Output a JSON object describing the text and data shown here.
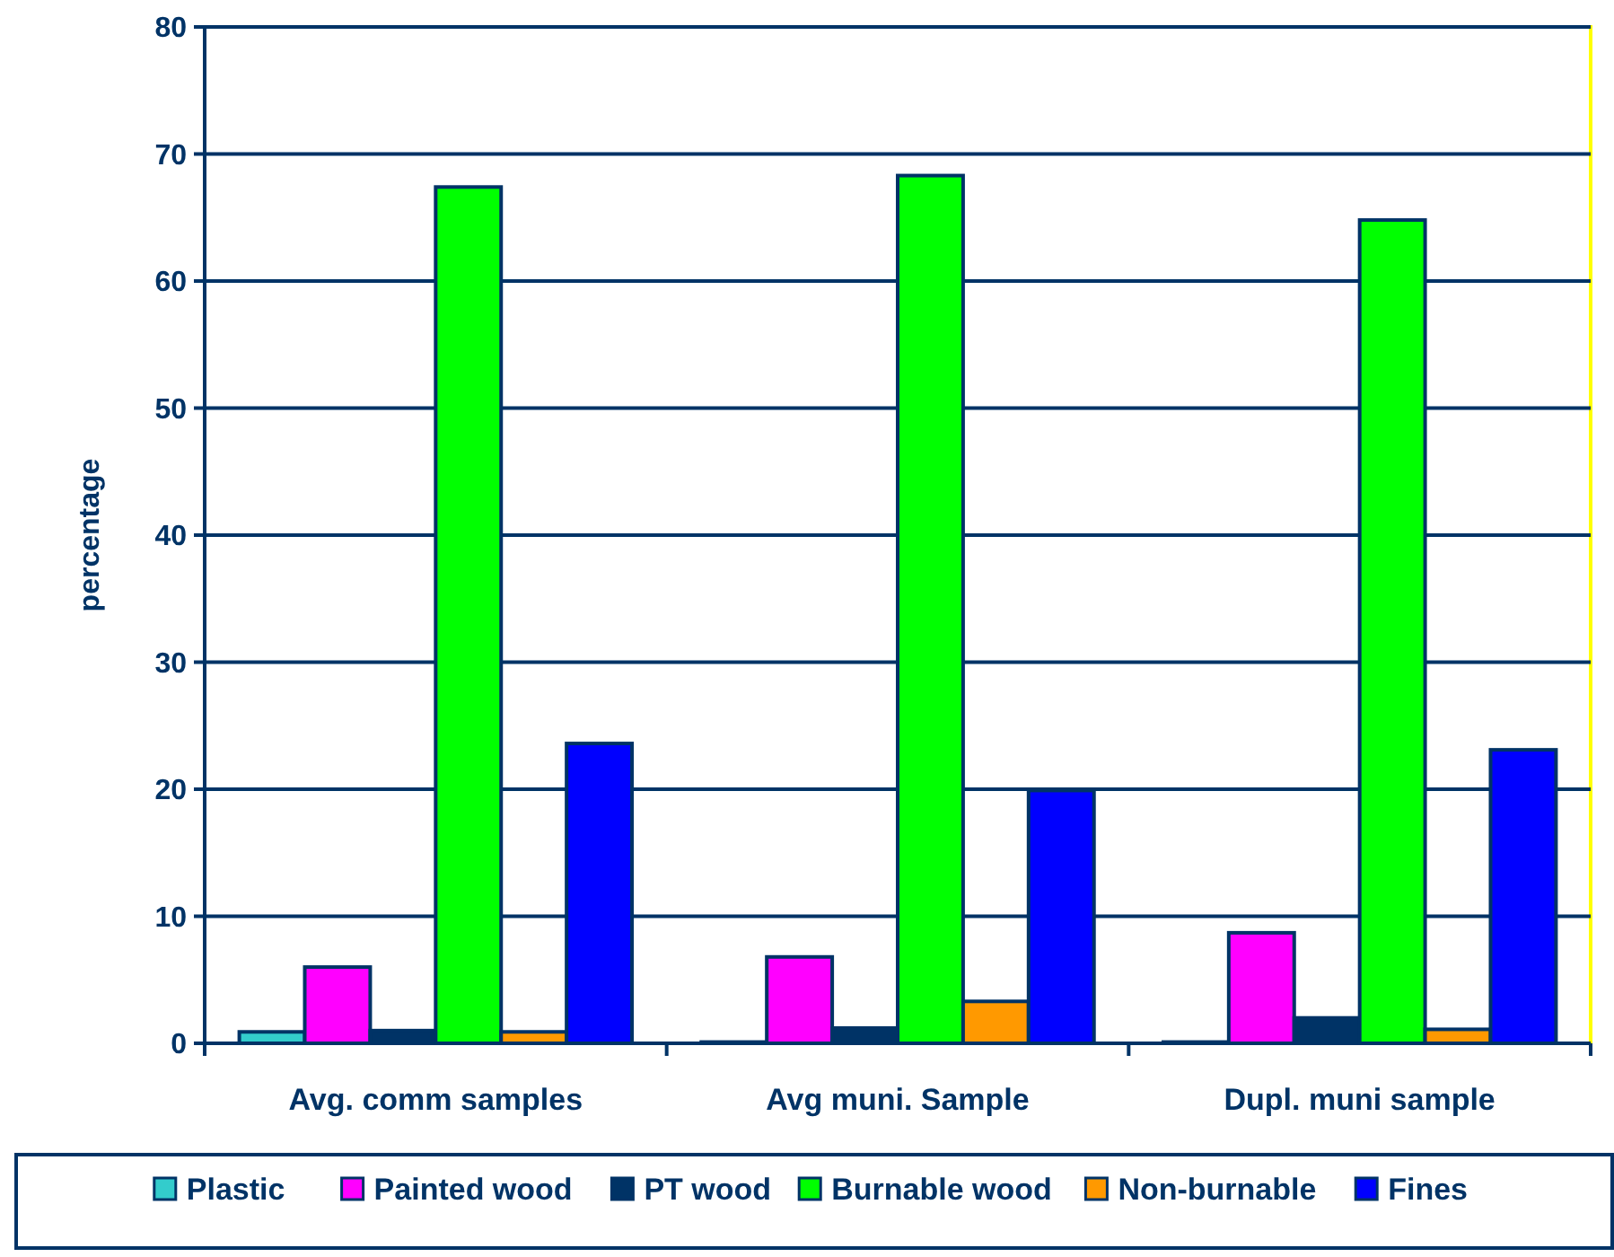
{
  "chart_data": {
    "type": "bar",
    "ylabel": "percentage",
    "categories": [
      "Avg. comm samples",
      "Avg muni. Sample",
      "Dupl. muni sample"
    ],
    "series": [
      {
        "name": "Plastic",
        "color": "#33cccc",
        "values": [
          0.9,
          0.1,
          0.1
        ]
      },
      {
        "name": "Painted wood",
        "color": "#ff00ff",
        "values": [
          6.0,
          6.8,
          8.7
        ]
      },
      {
        "name": "PT wood",
        "color": "#003366",
        "values": [
          1.0,
          1.2,
          2.0
        ]
      },
      {
        "name": "Burnable wood",
        "color": "#00ff00",
        "values": [
          67.4,
          68.3,
          64.8
        ]
      },
      {
        "name": "Non-burnable",
        "color": "#ff9900",
        "values": [
          0.9,
          3.3,
          1.1
        ]
      },
      {
        "name": "Fines",
        "color": "#0000ff",
        "values": [
          23.6,
          19.9,
          23.1
        ]
      }
    ],
    "ylim": [
      0,
      80
    ],
    "yticks": [
      0,
      10,
      20,
      30,
      40,
      50,
      60,
      70,
      80
    ],
    "grid": "y",
    "legend": "bottom"
  }
}
